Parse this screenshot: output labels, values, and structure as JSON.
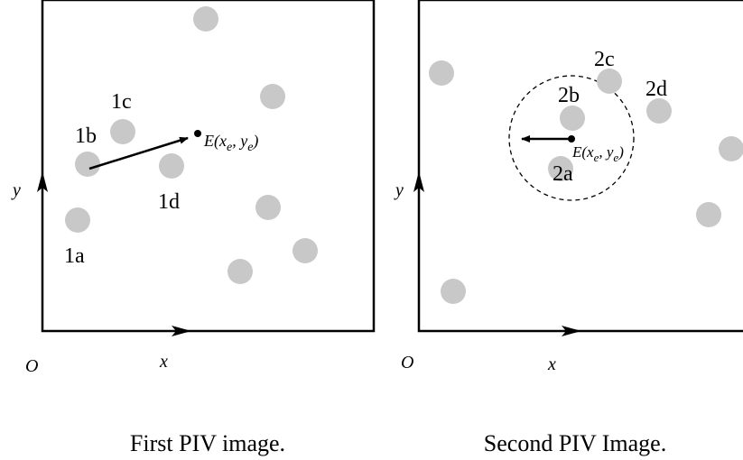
{
  "panels": {
    "first": {
      "caption": "First PIV image.",
      "origin_label": "O",
      "x_axis_label": "x",
      "y_axis_label": "y",
      "particle_labels": {
        "p1a": "1a",
        "p1b": "1b",
        "p1c": "1c",
        "p1d": "1d"
      },
      "point_label": {
        "prefix": "E(x",
        "sub1": "e",
        "mid": ", y",
        "sub2": "e",
        "suffix": ")"
      }
    },
    "second": {
      "caption": "Second PIV Image.",
      "origin_label": "O",
      "x_axis_label": "x",
      "y_axis_label": "y",
      "particle_labels": {
        "p2a": "2a",
        "p2b": "2b",
        "p2c": "2c",
        "p2d": "2d"
      },
      "point_label": {
        "prefix": "E(x",
        "sub1": "e",
        "mid": ", y",
        "sub2": "e",
        "suffix": ")"
      }
    }
  },
  "colors": {
    "particle": "#c8c8c8",
    "line": "#000000"
  }
}
